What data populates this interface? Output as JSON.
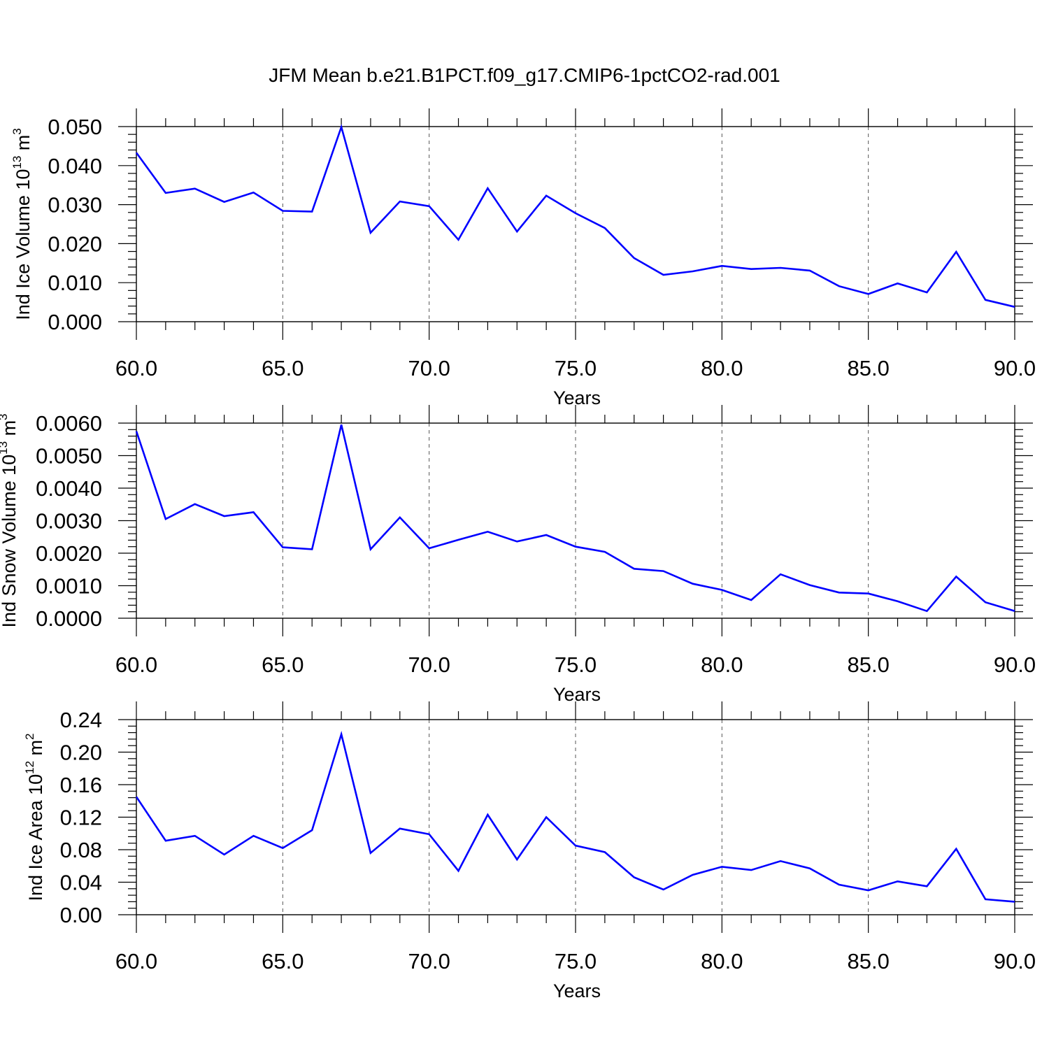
{
  "title": "JFM Mean b.e21.B1PCT.f09_g17.CMIP6-1pctCO2-rad.001",
  "series_color": "#0000ff",
  "chart_data": [
    {
      "type": "line",
      "ylabel": {
        "text": "Ind Ice Volume 10",
        "sup": "13",
        "unit": " m",
        "unit_sup": "3"
      },
      "xlabel": "Years",
      "xlim": [
        60,
        90
      ],
      "ylim": [
        0,
        0.05
      ],
      "xticks": [
        60,
        65,
        70,
        75,
        80,
        85,
        90
      ],
      "xtick_labels": [
        "60.0",
        "65.0",
        "70.0",
        "75.0",
        "80.0",
        "85.0",
        "90.0"
      ],
      "yticks": [
        0,
        0.01,
        0.02,
        0.03,
        0.04,
        0.05
      ],
      "ytick_labels": [
        "0.000",
        "0.010",
        "0.020",
        "0.030",
        "0.040",
        "0.050"
      ],
      "grid": "vertical dashed at major x ticks",
      "x": [
        60,
        61,
        62,
        63,
        64,
        65,
        66,
        67,
        68,
        69,
        70,
        71,
        72,
        73,
        74,
        75,
        76,
        77,
        78,
        79,
        80,
        81,
        82,
        83,
        84,
        85,
        86,
        87,
        88,
        89,
        90
      ],
      "values": [
        0.0433,
        0.033,
        0.0341,
        0.0307,
        0.0331,
        0.0284,
        0.0282,
        0.0499,
        0.0228,
        0.0308,
        0.0296,
        0.021,
        0.0342,
        0.0231,
        0.0323,
        0.0278,
        0.024,
        0.0163,
        0.012,
        0.0129,
        0.0143,
        0.0135,
        0.0138,
        0.0131,
        0.0091,
        0.0071,
        0.0098,
        0.0075,
        0.0179,
        0.0056,
        0.0038
      ]
    },
    {
      "type": "line",
      "ylabel": {
        "text": "Ind Snow Volume 10",
        "sup": "13",
        "unit": " m",
        "unit_sup": "3"
      },
      "xlabel": "Years",
      "xlim": [
        60,
        90
      ],
      "ylim": [
        0,
        0.006
      ],
      "xticks": [
        60,
        65,
        70,
        75,
        80,
        85,
        90
      ],
      "xtick_labels": [
        "60.0",
        "65.0",
        "70.0",
        "75.0",
        "80.0",
        "85.0",
        "90.0"
      ],
      "yticks": [
        0,
        0.001,
        0.002,
        0.003,
        0.004,
        0.005,
        0.006
      ],
      "ytick_labels": [
        "0.0000",
        "0.0010",
        "0.0020",
        "0.0030",
        "0.0040",
        "0.0050",
        "0.0060"
      ],
      "grid": "vertical dashed at major x ticks",
      "x": [
        60,
        61,
        62,
        63,
        64,
        65,
        66,
        67,
        68,
        69,
        70,
        71,
        72,
        73,
        74,
        75,
        76,
        77,
        78,
        79,
        80,
        81,
        82,
        83,
        84,
        85,
        86,
        87,
        88,
        89,
        90
      ],
      "values": [
        0.00575,
        0.00305,
        0.00351,
        0.00314,
        0.00326,
        0.00218,
        0.00212,
        0.00595,
        0.00212,
        0.0031,
        0.00215,
        0.00241,
        0.00266,
        0.00236,
        0.00256,
        0.0022,
        0.00204,
        0.00152,
        0.00145,
        0.00106,
        0.00087,
        0.00056,
        0.00135,
        0.00102,
        0.00079,
        0.00076,
        0.00052,
        0.00022,
        0.00128,
        0.00049,
        0.00022
      ]
    },
    {
      "type": "line",
      "ylabel": {
        "text": "Ind Ice Area 10",
        "sup": "12",
        "unit": " m",
        "unit_sup": "2"
      },
      "xlabel": "Years",
      "xlim": [
        60,
        90
      ],
      "ylim": [
        0,
        0.24
      ],
      "xticks": [
        60,
        65,
        70,
        75,
        80,
        85,
        90
      ],
      "xtick_labels": [
        "60.0",
        "65.0",
        "70.0",
        "75.0",
        "80.0",
        "85.0",
        "90.0"
      ],
      "yticks": [
        0,
        0.04,
        0.08,
        0.12,
        0.16,
        0.2,
        0.24
      ],
      "ytick_labels": [
        "0.00",
        "0.04",
        "0.08",
        "0.12",
        "0.16",
        "0.20",
        "0.24"
      ],
      "grid": "vertical dashed at major x ticks",
      "x": [
        60,
        61,
        62,
        63,
        64,
        65,
        66,
        67,
        68,
        69,
        70,
        71,
        72,
        73,
        74,
        75,
        76,
        77,
        78,
        79,
        80,
        81,
        82,
        83,
        84,
        85,
        86,
        87,
        88,
        89,
        90
      ],
      "values": [
        0.145,
        0.091,
        0.097,
        0.074,
        0.097,
        0.082,
        0.104,
        0.222,
        0.076,
        0.106,
        0.099,
        0.054,
        0.123,
        0.068,
        0.12,
        0.085,
        0.077,
        0.046,
        0.031,
        0.049,
        0.059,
        0.055,
        0.066,
        0.057,
        0.037,
        0.03,
        0.041,
        0.035,
        0.081,
        0.019,
        0.016
      ]
    }
  ]
}
